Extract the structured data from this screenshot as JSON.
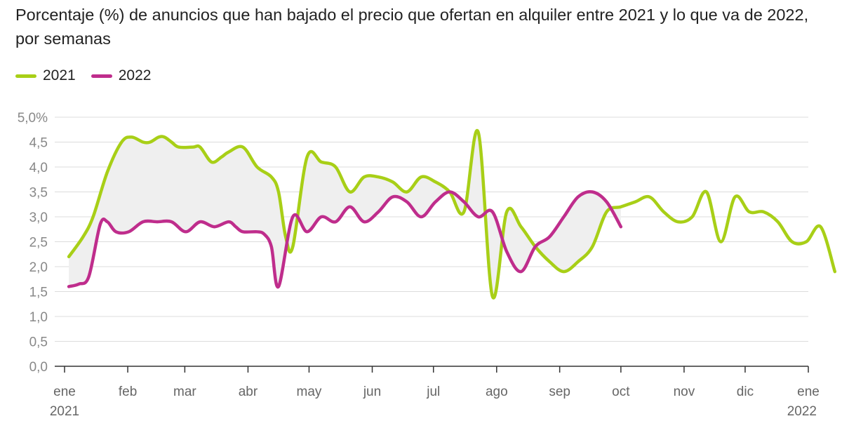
{
  "chart_data": {
    "type": "line",
    "title": "Porcentaje (%) de anuncios que han bajado el precio que ofertan en alquiler entre 2021 y lo que va de 2022, por semanas",
    "xlabel": "",
    "ylabel": "",
    "ylim": [
      0,
      5
    ],
    "y_ticks": [
      "0,0",
      "0,5",
      "1,0",
      "1,5",
      "2,0",
      "2,5",
      "3,0",
      "3,5",
      "4,0",
      "4,5",
      "5,0%"
    ],
    "x_ticks": [
      {
        "label": "ene",
        "sub": "2021",
        "week": 0
      },
      {
        "label": "feb",
        "sub": "",
        "week": 4.43
      },
      {
        "label": "mar",
        "sub": "",
        "week": 8.43
      },
      {
        "label": "abr",
        "sub": "",
        "week": 12.86
      },
      {
        "label": "may",
        "sub": "",
        "week": 17.14
      },
      {
        "label": "jun",
        "sub": "",
        "week": 21.57
      },
      {
        "label": "jul",
        "sub": "",
        "week": 25.86
      },
      {
        "label": "ago",
        "sub": "",
        "week": 30.29
      },
      {
        "label": "sep",
        "sub": "",
        "week": 34.71
      },
      {
        "label": "oct",
        "sub": "",
        "week": 39
      },
      {
        "label": "nov",
        "sub": "",
        "week": 43.43
      },
      {
        "label": "dic",
        "sub": "",
        "week": 47.71
      },
      {
        "label": "ene",
        "sub": "2022",
        "week": 52.14
      }
    ],
    "series": [
      {
        "name": "2021",
        "color": "#a8cf17",
        "points": [
          [
            0.3,
            2.2
          ],
          [
            1.3,
            2.6
          ],
          [
            2,
            3.0
          ],
          [
            3,
            3.9
          ],
          [
            4,
            4.5
          ],
          [
            4.7,
            4.6
          ],
          [
            5.5,
            4.5
          ],
          [
            6,
            4.5
          ],
          [
            6.6,
            4.6
          ],
          [
            7,
            4.6
          ],
          [
            7.5,
            4.5
          ],
          [
            8,
            4.4
          ],
          [
            9,
            4.4
          ],
          [
            9.5,
            4.4
          ],
          [
            10.3,
            4.1
          ],
          [
            11,
            4.2
          ],
          [
            11.5,
            4.3
          ],
          [
            12.5,
            4.4
          ],
          [
            13.5,
            4.0
          ],
          [
            14.5,
            3.8
          ],
          [
            15,
            3.5
          ],
          [
            15.5,
            2.6
          ],
          [
            16,
            2.4
          ],
          [
            17,
            4.2
          ],
          [
            18,
            4.1
          ],
          [
            19,
            4.0
          ],
          [
            20,
            3.5
          ],
          [
            21,
            3.8
          ],
          [
            22,
            3.8
          ],
          [
            23,
            3.7
          ],
          [
            24,
            3.5
          ],
          [
            25,
            3.8
          ],
          [
            26,
            3.7
          ],
          [
            27,
            3.5
          ],
          [
            28,
            3.1
          ],
          [
            29,
            4.7
          ],
          [
            30,
            1.4
          ],
          [
            31,
            3.1
          ],
          [
            32,
            2.8
          ],
          [
            33,
            2.4
          ],
          [
            34,
            2.1
          ],
          [
            35,
            1.9
          ],
          [
            36,
            2.1
          ],
          [
            37,
            2.4
          ],
          [
            38,
            3.1
          ],
          [
            39,
            3.2
          ],
          [
            40,
            3.3
          ],
          [
            41,
            3.4
          ],
          [
            42,
            3.1
          ],
          [
            43,
            2.9
          ],
          [
            44,
            3.0
          ],
          [
            45,
            3.5
          ],
          [
            46,
            2.5
          ],
          [
            47,
            3.4
          ],
          [
            48,
            3.1
          ],
          [
            49,
            3.1
          ],
          [
            50,
            2.9
          ],
          [
            51,
            2.5
          ],
          [
            52,
            2.5
          ],
          [
            53,
            2.8
          ],
          [
            54,
            1.9
          ]
        ]
      },
      {
        "name": "2022",
        "color": "#bf2d8c",
        "points": [
          [
            0.3,
            1.6
          ],
          [
            1,
            1.65
          ],
          [
            1.7,
            1.8
          ],
          [
            2.5,
            2.85
          ],
          [
            3,
            2.9
          ],
          [
            3.6,
            2.7
          ],
          [
            4.5,
            2.7
          ],
          [
            5.5,
            2.9
          ],
          [
            6.5,
            2.9
          ],
          [
            7.5,
            2.9
          ],
          [
            8.5,
            2.7
          ],
          [
            9.5,
            2.9
          ],
          [
            10.5,
            2.8
          ],
          [
            11.5,
            2.9
          ],
          [
            12,
            2.8
          ],
          [
            12.5,
            2.7
          ],
          [
            13.5,
            2.7
          ],
          [
            14,
            2.65
          ],
          [
            14.5,
            2.4
          ],
          [
            15,
            1.6
          ],
          [
            16,
            3.0
          ],
          [
            17,
            2.7
          ],
          [
            18,
            3.0
          ],
          [
            19,
            2.9
          ],
          [
            20,
            3.2
          ],
          [
            21,
            2.9
          ],
          [
            22,
            3.1
          ],
          [
            23,
            3.4
          ],
          [
            24,
            3.3
          ],
          [
            25,
            3.0
          ],
          [
            26,
            3.3
          ],
          [
            27,
            3.5
          ],
          [
            28,
            3.3
          ],
          [
            29,
            3.0
          ],
          [
            30,
            3.1
          ],
          [
            31,
            2.3
          ],
          [
            32,
            1.9
          ],
          [
            33,
            2.4
          ],
          [
            34,
            2.6
          ],
          [
            35,
            3.0
          ],
          [
            36,
            3.4
          ],
          [
            37,
            3.5
          ],
          [
            38,
            3.3
          ],
          [
            39,
            2.8
          ]
        ]
      }
    ],
    "legend_position": "top-left",
    "grid": true,
    "fill_between": true
  }
}
